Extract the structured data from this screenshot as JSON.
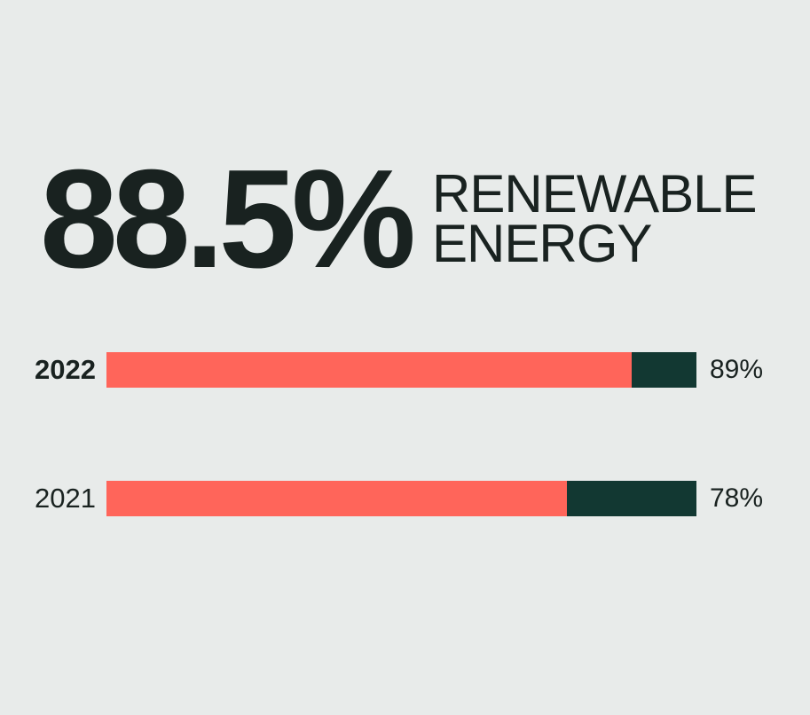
{
  "colors": {
    "background": "#E8EBEA",
    "text": "#192220",
    "bar_fill": "#FF655A",
    "bar_track": "#123832"
  },
  "headline": {
    "value": "88.5%",
    "label_line1": "RENEWABLE",
    "label_line2": "ENERGY"
  },
  "chart_data": {
    "type": "bar",
    "orientation": "horizontal",
    "title": "88.5% RENEWABLE ENERGY",
    "categories": [
      "2022",
      "2021"
    ],
    "values": [
      89,
      78
    ],
    "value_labels": [
      "89%",
      "78%"
    ],
    "xlim": [
      0,
      100
    ],
    "grid": false,
    "legend": false,
    "highlighted_category": "2022",
    "fill_color": "#FF655A",
    "track_color": "#123832"
  }
}
